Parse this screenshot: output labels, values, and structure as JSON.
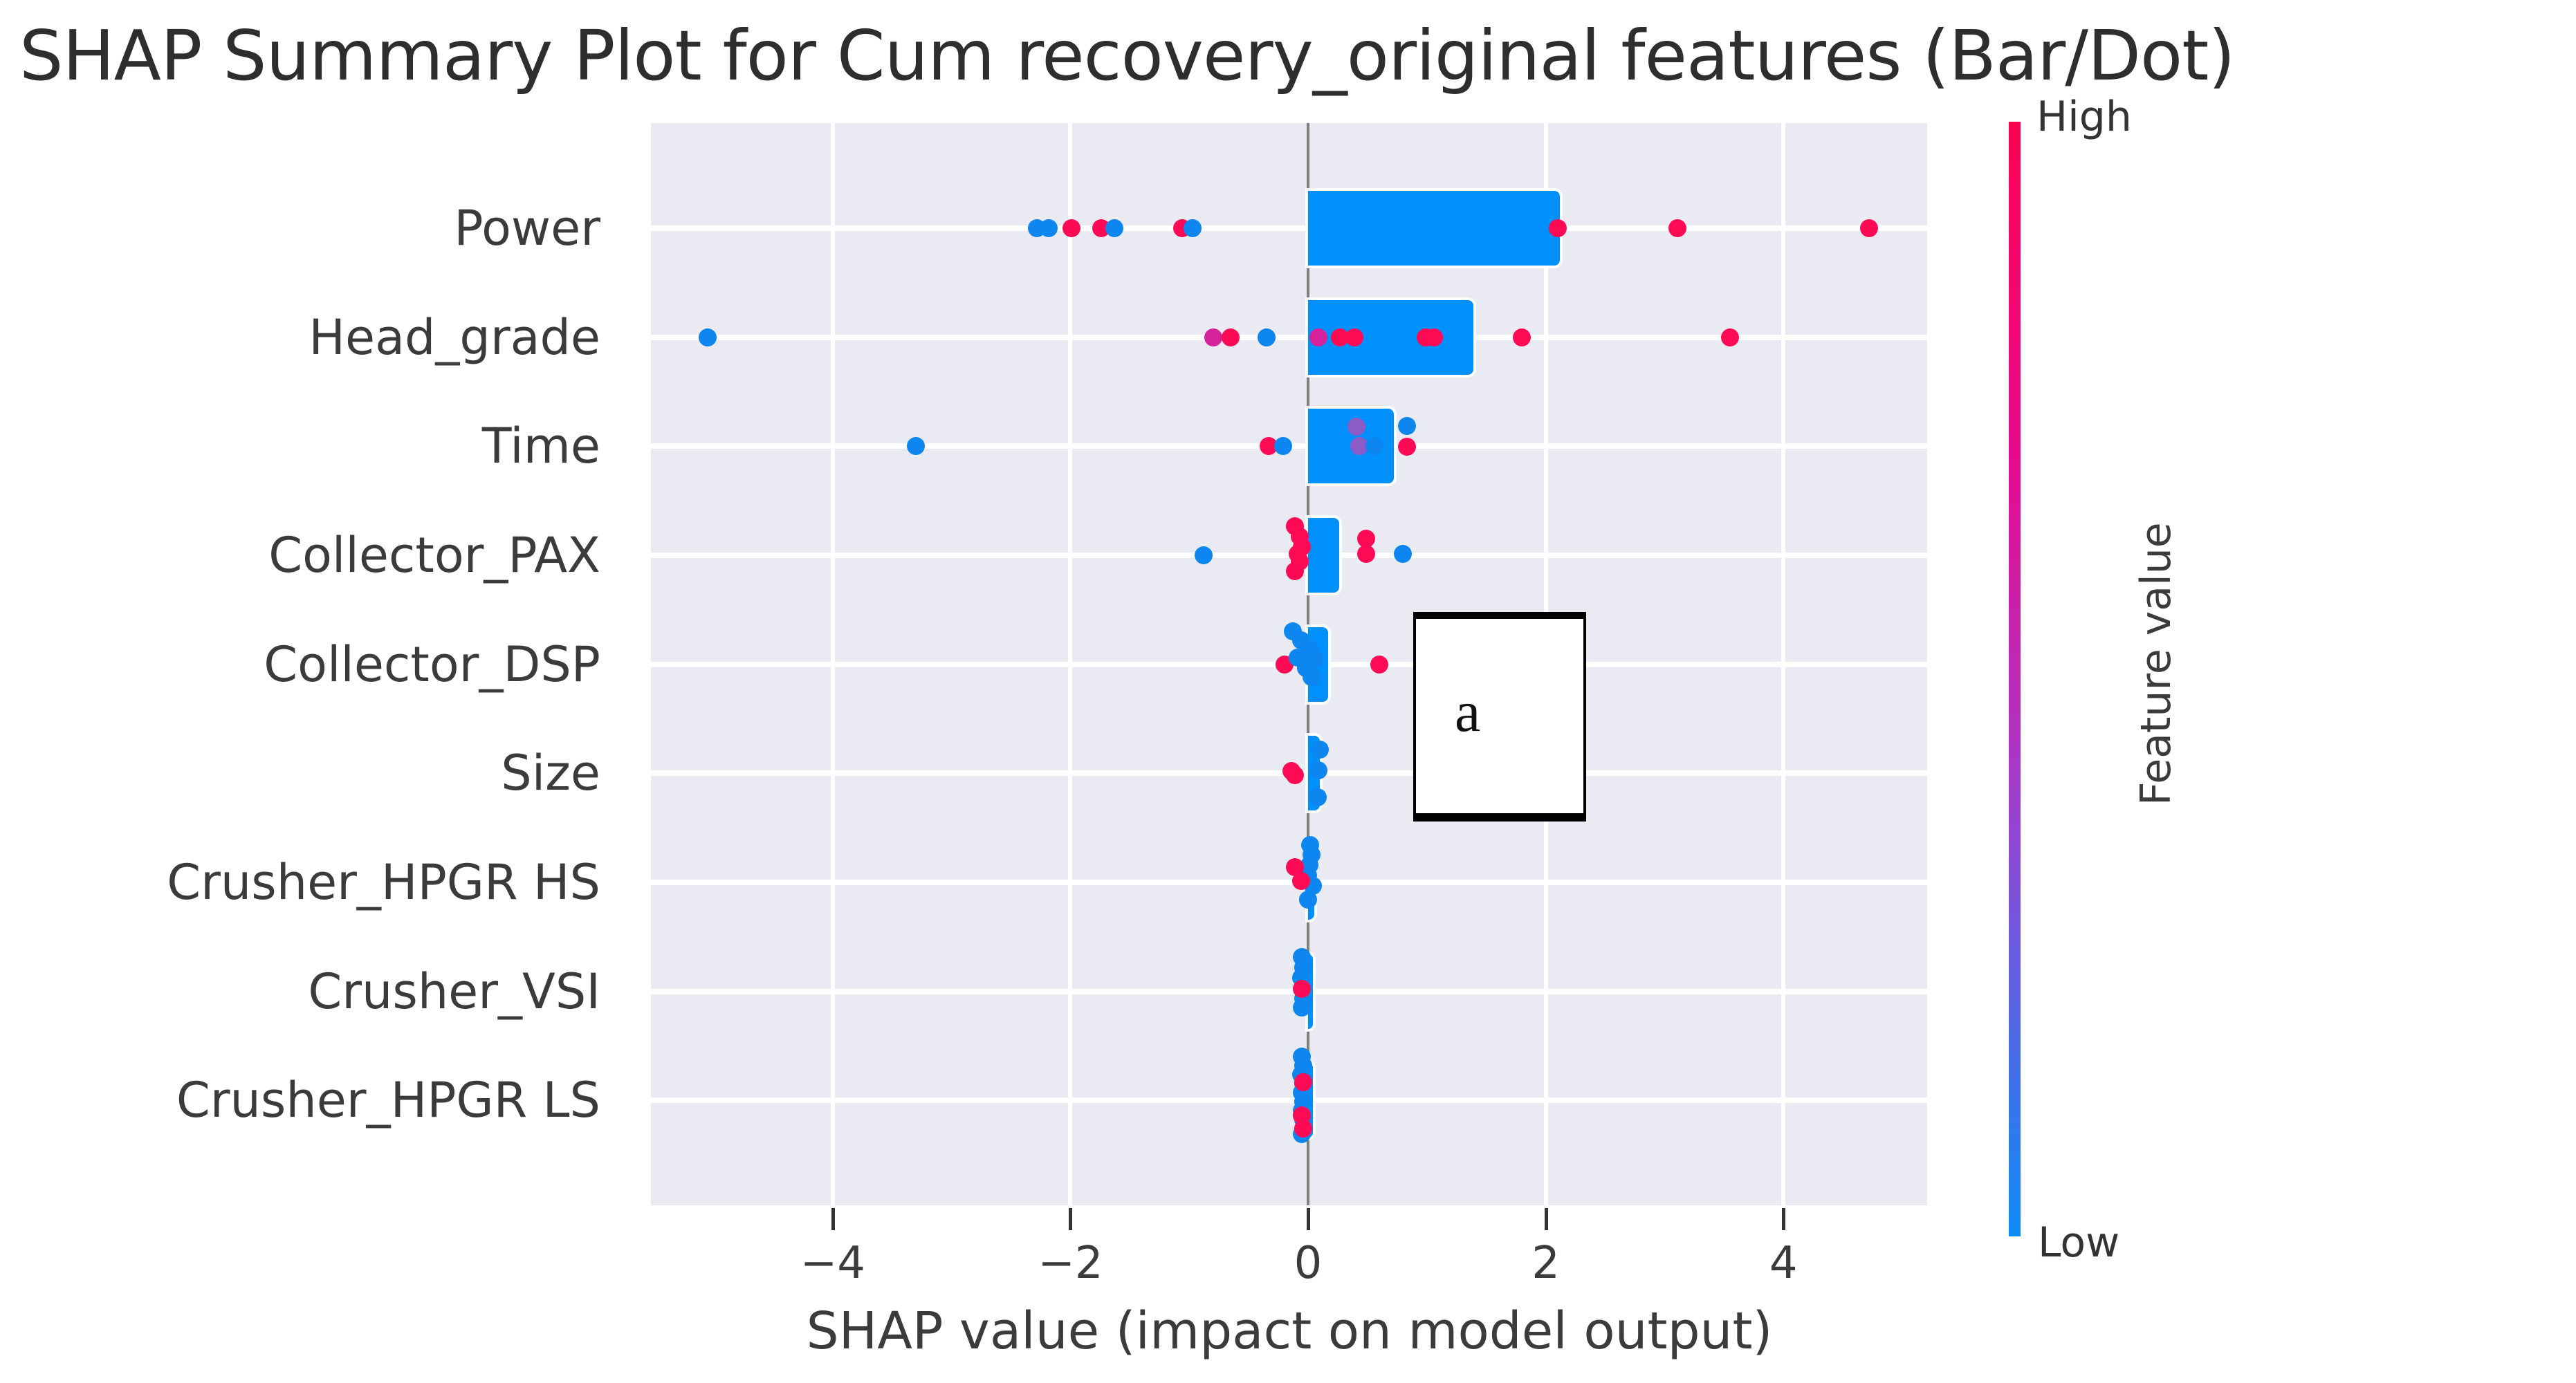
{
  "chart_data": {
    "type": "bar+scatter (SHAP summary plot)",
    "title": "SHAP Summary Plot for Cum recovery_original features (Bar/Dot)",
    "xlabel": "SHAP value (impact on model output)",
    "xlim": [
      -5.52,
      5.2
    ],
    "grid": true,
    "x_ticks": [
      {
        "v": -4,
        "label": "−4"
      },
      {
        "v": -2,
        "label": "−2"
      },
      {
        "v": 0,
        "label": "0"
      },
      {
        "v": 2,
        "label": "2"
      },
      {
        "v": 4,
        "label": "4"
      }
    ],
    "colors": {
      "plot_bg": "#e9eaf2",
      "grid": "#ffffff",
      "zero_line": "#7f7f7f",
      "bar": "#0090fb",
      "dot_blue": "#0d86f0",
      "dot_pink": "#ff0a54",
      "dot_magenta": "#d6219c",
      "dot_purple": "#8b5bc7",
      "text": "#3b3b3b"
    },
    "colorbar": {
      "high_label": "High",
      "low_label": "Low",
      "axis_label": "Feature value",
      "gradient": [
        "#ff0051",
        "#e60b8e",
        "#b132c1",
        "#7457dd",
        "#0d8bf5"
      ]
    },
    "features": [
      {
        "name": "Power",
        "bar": 2.12,
        "dots": [
          {
            "v": -2.28,
            "c": "blue"
          },
          {
            "v": -2.18,
            "c": "blue"
          },
          {
            "v": -1.99,
            "c": "pink"
          },
          {
            "v": -1.74,
            "c": "pink"
          },
          {
            "v": -1.63,
            "c": "blue"
          },
          {
            "v": -1.06,
            "c": "pink"
          },
          {
            "v": -0.97,
            "c": "blue"
          },
          {
            "v": 2.1,
            "c": "pink"
          },
          {
            "v": 3.11,
            "c": "pink"
          },
          {
            "v": 4.72,
            "c": "pink"
          }
        ]
      },
      {
        "name": "Head_grade",
        "bar": 1.39,
        "dots": [
          {
            "v": -5.05,
            "c": "blue"
          },
          {
            "v": -0.8,
            "c": "magenta"
          },
          {
            "v": -0.65,
            "c": "pink"
          },
          {
            "v": -0.35,
            "c": "blue"
          },
          {
            "v": 0.09,
            "c": "magenta"
          },
          {
            "v": 0.27,
            "c": "pink"
          },
          {
            "v": 0.39,
            "c": "pink"
          },
          {
            "v": 0.99,
            "c": "pink"
          },
          {
            "v": 1.06,
            "c": "pink"
          },
          {
            "v": 1.8,
            "c": "pink"
          },
          {
            "v": 3.55,
            "c": "pink"
          }
        ]
      },
      {
        "name": "Time",
        "bar": 0.72,
        "dots": [
          {
            "v": -3.3,
            "c": "blue"
          },
          {
            "v": -0.33,
            "c": "pink"
          },
          {
            "v": -0.21,
            "c": "blue"
          },
          {
            "v": 0.41,
            "c": "purple",
            "dy": -28
          },
          {
            "v": 0.43,
            "c": "purple"
          },
          {
            "v": 0.56,
            "c": "blue"
          },
          {
            "v": 0.83,
            "c": "blue",
            "dy": -29
          },
          {
            "v": 0.83,
            "c": "pink",
            "dy": 1
          }
        ]
      },
      {
        "name": "Collector_PAX",
        "bar": 0.26,
        "dots": [
          {
            "v": -0.88,
            "c": "blue"
          },
          {
            "v": -0.11,
            "c": "pink",
            "dy": -42
          },
          {
            "v": -0.07,
            "c": "pink",
            "dy": -27
          },
          {
            "v": -0.05,
            "c": "pink",
            "dy": -12
          },
          {
            "v": -0.09,
            "c": "pink",
            "dy": -2
          },
          {
            "v": -0.07,
            "c": "pink",
            "dy": 9
          },
          {
            "v": -0.11,
            "c": "pink",
            "dy": 23
          },
          {
            "v": 0.49,
            "c": "pink",
            "dy": -24
          },
          {
            "v": 0.49,
            "c": "pink",
            "dy": -2
          },
          {
            "v": 0.8,
            "c": "blue",
            "dy": -2
          }
        ]
      },
      {
        "name": "Collector_DSP",
        "bar": 0.17,
        "dots": [
          {
            "v": -0.2,
            "c": "pink"
          },
          {
            "v": -0.13,
            "c": "blue",
            "dy": -48
          },
          {
            "v": -0.06,
            "c": "blue",
            "dy": -35
          },
          {
            "v": 0.01,
            "c": "blue",
            "dy": -22
          },
          {
            "v": -0.09,
            "c": "blue",
            "dy": -10
          },
          {
            "v": 0.05,
            "c": "blue",
            "dy": -8
          },
          {
            "v": -0.02,
            "c": "blue",
            "dy": 5
          },
          {
            "v": 0.03,
            "c": "blue",
            "dy": 18
          },
          {
            "v": 0.6,
            "c": "pink"
          }
        ]
      },
      {
        "name": "Size",
        "bar": 0.1,
        "dots": [
          {
            "v": -0.14,
            "c": "pink",
            "dy": -3
          },
          {
            "v": -0.11,
            "c": "pink",
            "dy": 3
          },
          {
            "v": 0.1,
            "c": "blue",
            "dy": -34
          },
          {
            "v": 0.09,
            "c": "blue",
            "dy": -4
          },
          {
            "v": 0.08,
            "c": "blue",
            "dy": 35
          }
        ]
      },
      {
        "name": "Crusher_HPGR HS",
        "bar": 0.05,
        "dots": [
          {
            "v": 0.02,
            "c": "blue",
            "dy": -54
          },
          {
            "v": 0.03,
            "c": "blue",
            "dy": -40
          },
          {
            "v": 0.01,
            "c": "blue",
            "dy": -25
          },
          {
            "v": 0.0,
            "c": "blue",
            "dy": -10
          },
          {
            "v": 0.04,
            "c": "blue",
            "dy": 5
          },
          {
            "v": 0.0,
            "c": "blue",
            "dy": 25
          },
          {
            "v": -0.11,
            "c": "pink",
            "dy": -22
          },
          {
            "v": -0.06,
            "c": "pink",
            "dy": -2
          }
        ]
      },
      {
        "name": "Crusher_VSI",
        "bar": 0.04,
        "dots": [
          {
            "v": -0.05,
            "c": "blue",
            "dy": -50
          },
          {
            "v": -0.04,
            "c": "blue",
            "dy": -35
          },
          {
            "v": -0.06,
            "c": "blue",
            "dy": -20
          },
          {
            "v": -0.04,
            "c": "blue",
            "dy": 10
          },
          {
            "v": -0.05,
            "c": "blue",
            "dy": 23
          },
          {
            "v": -0.05,
            "c": "pink",
            "dy": -4
          }
        ]
      },
      {
        "name": "Crusher_HPGR LS",
        "bar": 0.04,
        "dots": [
          {
            "v": -0.05,
            "c": "blue",
            "dy": -63
          },
          {
            "v": -0.04,
            "c": "blue",
            "dy": -50
          },
          {
            "v": -0.06,
            "c": "blue",
            "dy": -37
          },
          {
            "v": -0.04,
            "c": "blue",
            "dy": -24
          },
          {
            "v": -0.05,
            "c": "blue",
            "dy": -11
          },
          {
            "v": -0.04,
            "c": "blue",
            "dy": 2
          },
          {
            "v": -0.05,
            "c": "blue",
            "dy": 15
          },
          {
            "v": -0.04,
            "c": "blue",
            "dy": 28
          },
          {
            "v": -0.05,
            "c": "blue",
            "dy": 49
          },
          {
            "v": -0.04,
            "c": "pink",
            "dy": -26
          },
          {
            "v": -0.05,
            "c": "pink",
            "dy": 22
          },
          {
            "v": -0.04,
            "c": "pink",
            "dy": 41
          }
        ]
      }
    ],
    "annotation": {
      "text": "a"
    }
  }
}
